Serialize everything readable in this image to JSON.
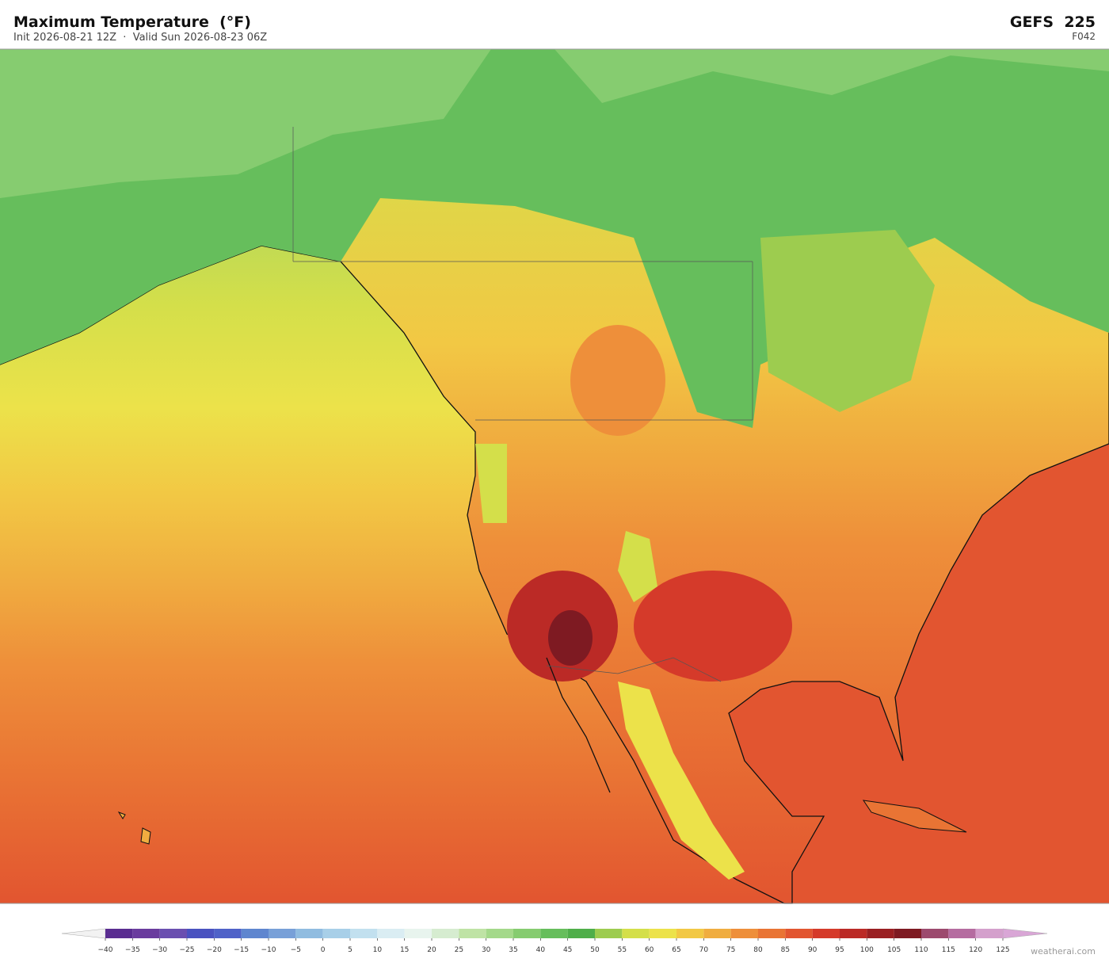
{
  "header": {
    "title": "Maximum Temperature  (°F)",
    "subtitle": "Init 2026-08-21 12Z  ·  Valid Sun 2026-08-23 06Z",
    "model": "GEFS  225",
    "forecast_hour": "F042"
  },
  "colorbar": {
    "ticks": [
      {
        "value": -40,
        "label": "−40"
      },
      {
        "value": -35,
        "label": "−35"
      },
      {
        "value": -30,
        "label": "−30"
      },
      {
        "value": -25,
        "label": "−25"
      },
      {
        "value": -20,
        "label": "−20"
      },
      {
        "value": -15,
        "label": "−15"
      },
      {
        "value": -10,
        "label": "−10"
      },
      {
        "value": -5,
        "label": "−5"
      },
      0,
      5,
      10,
      15,
      20,
      25,
      30,
      35,
      40,
      45,
      50,
      55,
      60,
      65,
      70,
      75,
      80,
      85,
      90,
      95,
      100,
      105,
      110,
      115,
      120,
      125
    ],
    "colors": [
      "#5a2d91",
      "#6a3c9e",
      "#6a4fb0",
      "#4a52c0",
      "#4f62c8",
      "#5f86cf",
      "#78a0d8",
      "#90bce0",
      "#a8cfe8",
      "#c2e0ef",
      "#daedf3",
      "#e8f4ee",
      "#d6ecd0",
      "#bfe3a5",
      "#a4d98a",
      "#86cc70",
      "#66be5c",
      "#4fae4a",
      "#9dcc4f",
      "#d4df4a",
      "#ece24a",
      "#f2c844",
      "#f0ad40",
      "#ee8f3a",
      "#e97434",
      "#e25530",
      "#d53a2a",
      "#bb2a26",
      "#9a1f22",
      "#7e1a22",
      "#9c4a6e",
      "#b56ca0",
      "#d4a0cc"
    ],
    "under_color": "#f2f2f2",
    "over_color": "#d9a6d6"
  },
  "watermark": "weatherai.com"
}
